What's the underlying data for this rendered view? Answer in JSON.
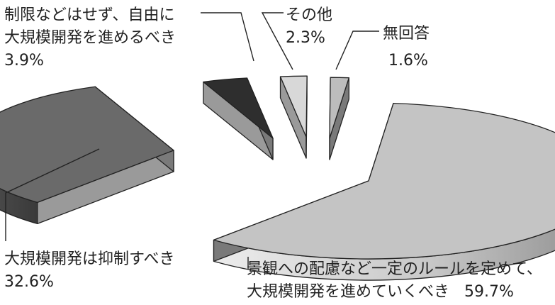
{
  "chart_data": {
    "type": "pie",
    "three_d": true,
    "exploded": true,
    "slices": [
      {
        "label_lines": [
          "景観への配慮など一定のルールを定めて、",
          "大規模開発を進めていくべき"
        ],
        "value_text": "59.7%",
        "value": 59.7,
        "color": "#c4c4c4"
      },
      {
        "label_lines": [
          "大規模開発は抑制すべき"
        ],
        "value_text": "32.6%",
        "value": 32.6,
        "color": "#6a6a6a"
      },
      {
        "label_lines": [
          "制限などはせず、自由に",
          "大規模開発を進めるべき"
        ],
        "value_text": "3.9%",
        "value": 3.9,
        "color": "#2e2e2e"
      },
      {
        "label_lines": [
          "その他"
        ],
        "value_text": "2.3%",
        "value": 2.3,
        "color": "#d8d8d8"
      },
      {
        "label_lines": [
          "無回答"
        ],
        "value_text": "1.6%",
        "value": 1.6,
        "color": "#bdbdbd"
      }
    ]
  }
}
